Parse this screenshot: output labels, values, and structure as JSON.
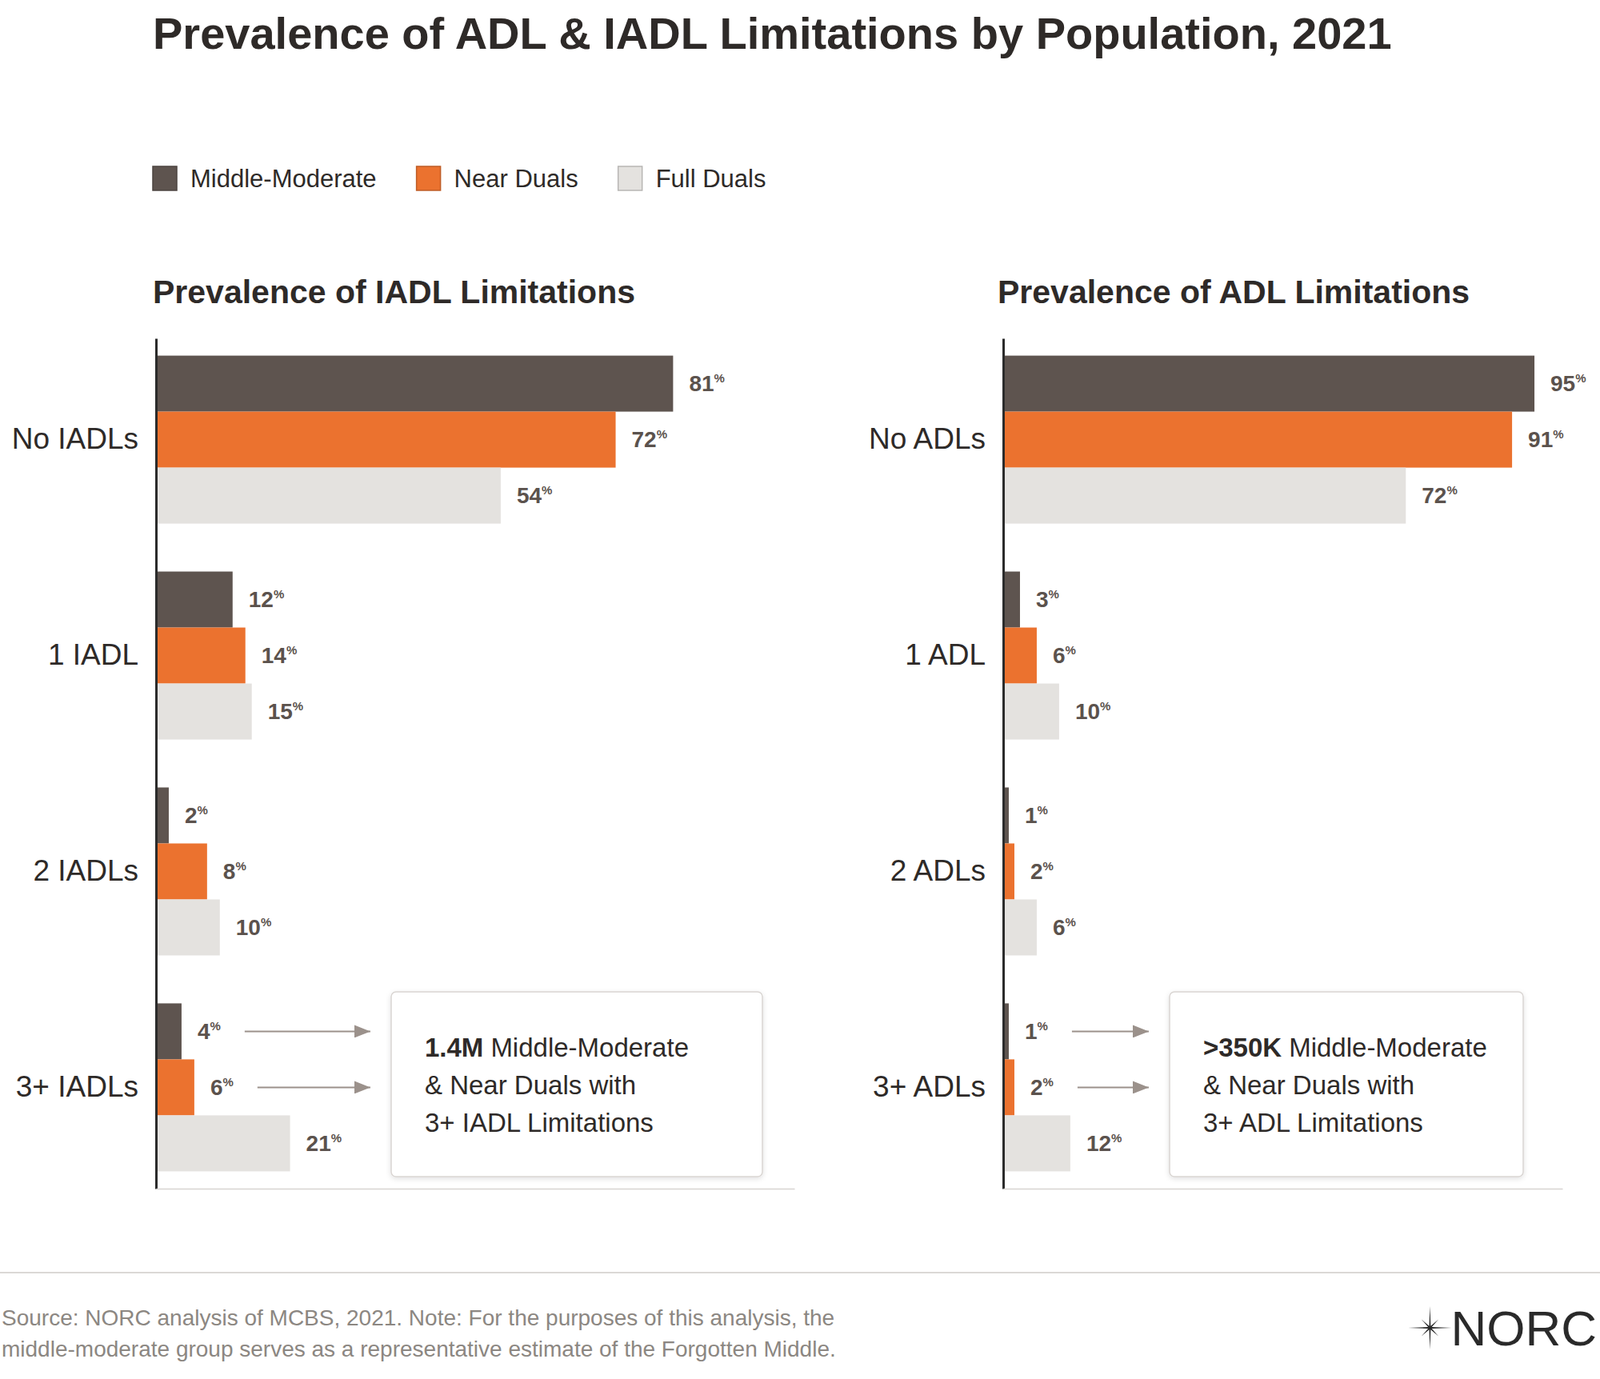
{
  "title": "Prevalence of ADL & IADL Limitations by Population, 2021",
  "source": "Source: NORC analysis of MCBS, 2021. Note: For the purposes of this analysis, the middle-moderate group serves as a representative estimate of the Forgotten Middle.",
  "logo": "NORC",
  "chart_data": [
    {
      "type": "bar",
      "orientation": "horizontal",
      "title": "Prevalence of IADL Limitations",
      "categories": [
        "No IADLs",
        "1 IADL",
        "2 IADLs",
        "3+ IADLs"
      ],
      "series": [
        {
          "name": "Middle-Moderate",
          "color": "#5e544f",
          "values": [
            81,
            12,
            2,
            4
          ],
          "value_labels": [
            "81%",
            "12%",
            "2%",
            "4%"
          ]
        },
        {
          "name": "Near Duals",
          "color": "#eb722f",
          "values": [
            72,
            14,
            8,
            6
          ],
          "value_labels": [
            "72%",
            "14%",
            "8%",
            "6%"
          ]
        },
        {
          "name": "Full Duals",
          "color": "#e4e2df",
          "values": [
            54,
            15,
            10,
            21
          ],
          "value_labels": [
            "54%",
            "15%",
            "10%",
            "21%"
          ]
        }
      ],
      "xlim": [
        0,
        100
      ],
      "data_labels": true,
      "tick_labels": "y",
      "legend": "top",
      "annotation": {
        "highlight": "1.4M",
        "lines": [
          "Middle-Moderate",
          "& Near Duals with",
          "3+ IADL Limitations"
        ]
      }
    },
    {
      "type": "bar",
      "orientation": "horizontal",
      "title": "Prevalence of ADL Limitations",
      "categories": [
        "No ADLs",
        "1 ADL",
        "2 ADLs",
        "3+ ADLs"
      ],
      "series": [
        {
          "name": "Middle-Moderate",
          "color": "#5e544f",
          "values": [
            95,
            3,
            1,
            1
          ],
          "value_labels": [
            "95%",
            "3%",
            "1%",
            "1%"
          ]
        },
        {
          "name": "Near Duals",
          "color": "#eb722f",
          "values": [
            91,
            6,
            2,
            2
          ],
          "value_labels": [
            "91%",
            "6%",
            "2%",
            "2%"
          ]
        },
        {
          "name": "Full Duals",
          "color": "#e4e2df",
          "values": [
            72,
            10,
            6,
            12
          ],
          "value_labels": [
            "72%",
            "10%",
            "6%",
            "12%"
          ]
        }
      ],
      "xlim": [
        0,
        100
      ],
      "data_labels": true,
      "tick_labels": "y",
      "annotation": {
        "highlight": ">350K",
        "lines": [
          "Middle-Moderate",
          "& Near Duals with",
          "3+ ADL Limitations"
        ]
      }
    }
  ]
}
